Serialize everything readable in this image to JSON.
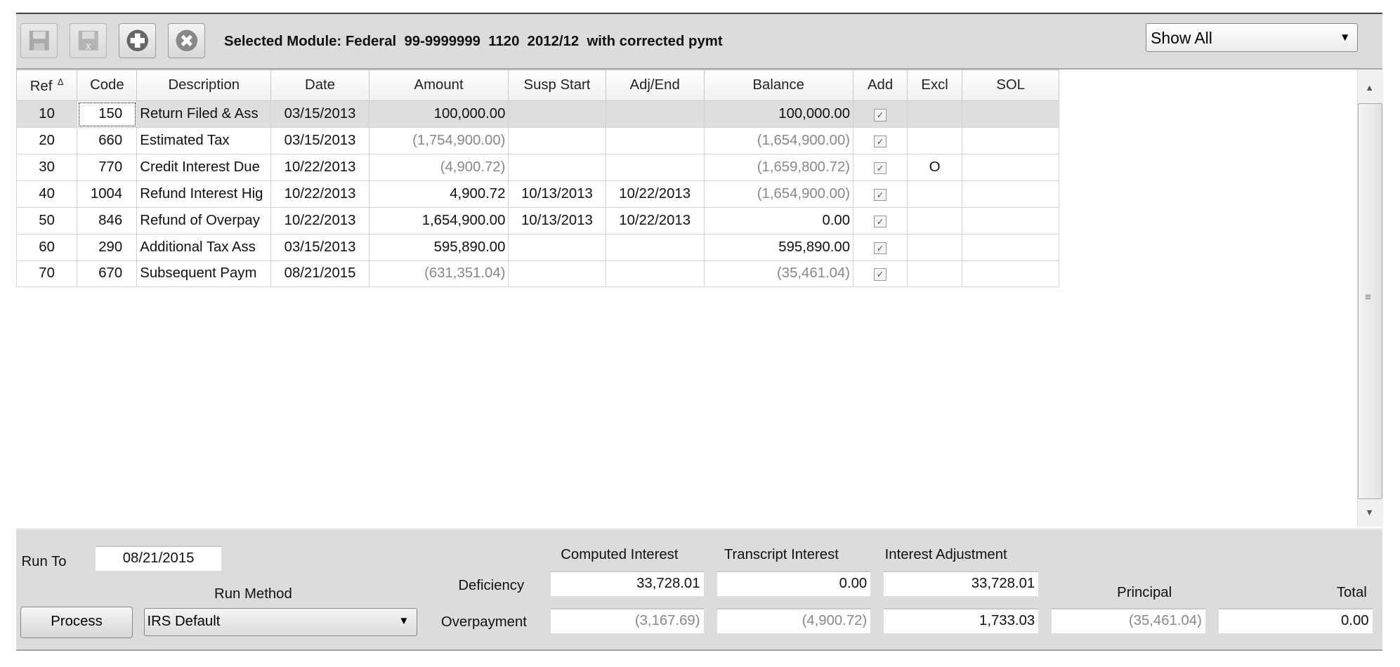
{
  "toolbar": {
    "buttons": [
      {
        "name": "save-icon",
        "enabled": false
      },
      {
        "name": "delete-save-icon",
        "enabled": false
      },
      {
        "name": "add-icon",
        "enabled": true
      },
      {
        "name": "cancel-icon",
        "enabled": true
      }
    ],
    "title": "Selected Module: Federal  99-9999999  1120  2012/12  with corrected pymt",
    "filter": "Show All"
  },
  "grid": {
    "columns": [
      "Ref",
      "Code",
      "Description",
      "Date",
      "Amount",
      "Susp Start",
      "Adj/End",
      "Balance",
      "Add",
      "Excl",
      "SOL"
    ],
    "sort_indicator": "Δ",
    "rows": [
      {
        "ref": "10",
        "code": "150",
        "description": "Return Filed & Ass",
        "date": "03/15/2013",
        "amount": "100,000.00",
        "susp_start": "",
        "adj_end": "",
        "balance": "100,000.00",
        "add": true,
        "excl": "",
        "sol": "",
        "selected": true
      },
      {
        "ref": "20",
        "code": "660",
        "description": "Estimated Tax",
        "date": "03/15/2013",
        "amount": "(1,754,900.00)",
        "susp_start": "",
        "adj_end": "",
        "balance": "(1,654,900.00)",
        "add": true,
        "excl": "",
        "sol": ""
      },
      {
        "ref": "30",
        "code": "770",
        "description": "Credit Interest Due",
        "date": "10/22/2013",
        "amount": "(4,900.72)",
        "susp_start": "",
        "adj_end": "",
        "balance": "(1,659,800.72)",
        "add": true,
        "excl": "O",
        "sol": ""
      },
      {
        "ref": "40",
        "code": "1004",
        "description": "Refund Interest Hig",
        "date": "10/22/2013",
        "amount": "4,900.72",
        "susp_start": "10/13/2013",
        "adj_end": "10/22/2013",
        "balance": "(1,654,900.00)",
        "add": true,
        "excl": "",
        "sol": ""
      },
      {
        "ref": "50",
        "code": "846",
        "description": "Refund of Overpay",
        "date": "10/22/2013",
        "amount": "1,654,900.00",
        "susp_start": "10/13/2013",
        "adj_end": "10/22/2013",
        "balance": "0.00",
        "add": true,
        "excl": "",
        "sol": ""
      },
      {
        "ref": "60",
        "code": "290",
        "description": "Additional Tax Ass",
        "date": "03/15/2013",
        "amount": "595,890.00",
        "susp_start": "",
        "adj_end": "",
        "balance": "595,890.00",
        "add": true,
        "excl": "",
        "sol": ""
      },
      {
        "ref": "70",
        "code": "670",
        "description": "Subsequent Paym",
        "date": "08/21/2015",
        "amount": "(631,351.04)",
        "susp_start": "",
        "adj_end": "",
        "balance": "(35,461.04)",
        "add": true,
        "excl": "",
        "sol": ""
      }
    ]
  },
  "bottom": {
    "run_to_label": "Run To",
    "run_to_value": "08/21/2015",
    "run_method_label": "Run Method",
    "run_method_value": "IRS Default",
    "process_label": "Process",
    "headers": {
      "computed": "Computed Interest",
      "transcript": "Transcript Interest",
      "adjustment": "Interest Adjustment",
      "principal": "Principal",
      "total": "Total"
    },
    "deficiency": {
      "label": "Deficiency",
      "computed": "33,728.01",
      "transcript": "0.00",
      "adjustment": "33,728.01"
    },
    "overpayment": {
      "label": "Overpayment",
      "computed": "(3,167.69)",
      "transcript": "(4,900.72)",
      "adjustment": "1,733.03",
      "principal": "(35,461.04)",
      "total": "0.00"
    }
  }
}
